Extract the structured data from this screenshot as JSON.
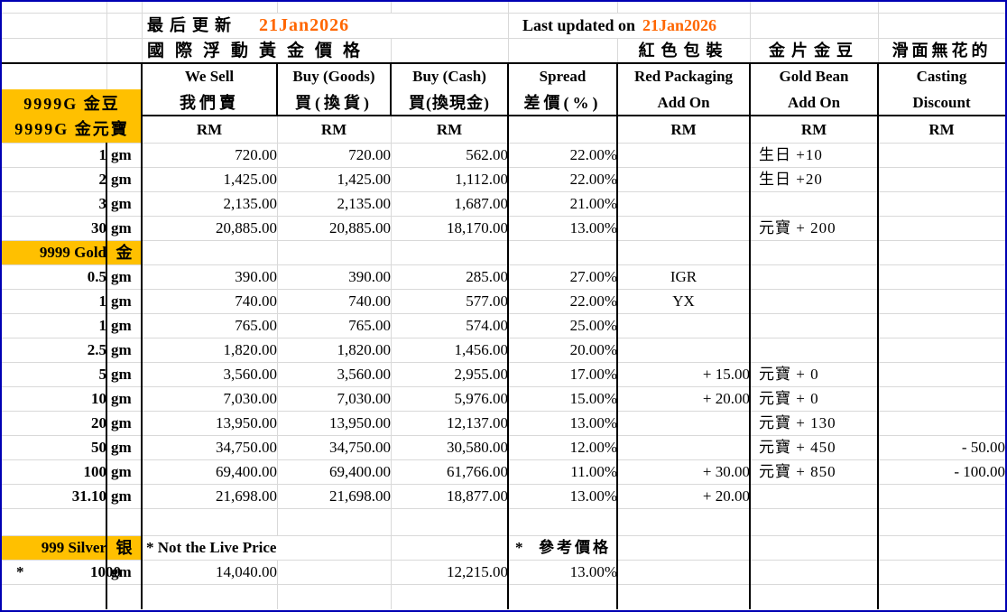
{
  "sheet": {
    "updated": {
      "label_cn": "最后更新",
      "label_en": "Last updated on",
      "date": "21Jan2026"
    },
    "subtitle_cn": "國際浮動黃金價格",
    "col_titles_cn": {
      "red_packaging": "紅色包裝",
      "gold_bean": "金片金豆",
      "casting": "滑面無花的"
    },
    "headers": {
      "en": {
        "we_sell": "We Sell",
        "buy_goods": "Buy (Goods)",
        "buy_cash": "Buy (Cash)",
        "spread": "Spread",
        "red_packaging": "Red Packaging",
        "gold_bean": "Gold Bean",
        "casting": "Casting"
      },
      "cn": {
        "we_sell": "我們賣",
        "buy_goods": "買(換貨)",
        "buy_cash": "買(換現金)",
        "spread": "差價(%)",
        "red_packaging": "Add On",
        "gold_bean": "Add On",
        "casting": "Discount"
      },
      "currency": "RM"
    },
    "section_bean": {
      "line1": "9999G 金豆",
      "line2": "9999G 金元寶"
    },
    "rows": [
      {
        "type": "data",
        "qty": "1",
        "unit": "gm",
        "sell": "720.00",
        "goods": "720.00",
        "cash": "562.00",
        "spread": "22.00%",
        "bean": "生日 +10"
      },
      {
        "type": "data",
        "qty": "2",
        "unit": "gm",
        "sell": "1,425.00",
        "goods": "1,425.00",
        "cash": "1,112.00",
        "spread": "22.00%",
        "bean": "生日 +20"
      },
      {
        "type": "data",
        "qty": "3",
        "unit": "gm",
        "sell": "2,135.00",
        "goods": "2,135.00",
        "cash": "1,687.00",
        "spread": "21.00%"
      },
      {
        "type": "data",
        "qty": "30",
        "unit": "gm",
        "sell": "20,885.00",
        "goods": "20,885.00",
        "cash": "18,170.00",
        "spread": "13.00%",
        "bean": "元寶 + 200"
      },
      {
        "type": "section",
        "label": "9999 Gold",
        "unit": "金"
      },
      {
        "type": "data",
        "qty": "0.5",
        "unit": "gm",
        "sell": "390.00",
        "goods": "390.00",
        "cash": "285.00",
        "spread": "27.00%",
        "red": "IGR"
      },
      {
        "type": "data",
        "qty": "1",
        "unit": "gm",
        "sell": "740.00",
        "goods": "740.00",
        "cash": "577.00",
        "spread": "22.00%",
        "red": "YX"
      },
      {
        "type": "data",
        "qty": "1",
        "unit": "gm",
        "sell": "765.00",
        "goods": "765.00",
        "cash": "574.00",
        "spread": "25.00%"
      },
      {
        "type": "data",
        "qty": "2.5",
        "unit": "gm",
        "sell": "1,820.00",
        "goods": "1,820.00",
        "cash": "1,456.00",
        "spread": "20.00%"
      },
      {
        "type": "data",
        "qty": "5",
        "unit": "gm",
        "sell": "3,560.00",
        "goods": "3,560.00",
        "cash": "2,955.00",
        "spread": "17.00%",
        "red": "+ 15.00",
        "bean": "元寶 + 0"
      },
      {
        "type": "data",
        "qty": "10",
        "unit": "gm",
        "sell": "7,030.00",
        "goods": "7,030.00",
        "cash": "5,976.00",
        "spread": "15.00%",
        "red": "+ 20.00",
        "bean": "元寶 + 0"
      },
      {
        "type": "data",
        "qty": "20",
        "unit": "gm",
        "sell": "13,950.00",
        "goods": "13,950.00",
        "cash": "12,137.00",
        "spread": "13.00%",
        "bean": "元寶 + 130"
      },
      {
        "type": "data",
        "qty": "50",
        "unit": "gm",
        "sell": "34,750.00",
        "goods": "34,750.00",
        "cash": "30,580.00",
        "spread": "12.00%",
        "bean": "元寶 + 450",
        "cast": "- 50.00"
      },
      {
        "type": "data",
        "qty": "100",
        "unit": "gm",
        "sell": "69,400.00",
        "goods": "69,400.00",
        "cash": "61,766.00",
        "spread": "11.00%",
        "red": "+ 30.00",
        "bean": "元寶 + 850",
        "cast": "- 100.00"
      },
      {
        "type": "data",
        "qty": "31.10",
        "unit": "gm",
        "sell": "21,698.00",
        "goods": "21,698.00",
        "cash": "18,877.00",
        "spread": "13.00%",
        "red": "+ 20.00"
      },
      {
        "type": "empty"
      },
      {
        "type": "note",
        "label": "999 Silver",
        "unit": "银",
        "note_en": "* Not the Live Price",
        "note_spread": "*  參考價格"
      },
      {
        "type": "data",
        "star": "*",
        "qty": "1000",
        "unit": "gm",
        "sell": "14,040.00",
        "cash": "12,215.00",
        "spread": "13.00%"
      },
      {
        "type": "empty"
      }
    ],
    "colors": {
      "highlight": "#FFC000",
      "date_orange": "#FF6600",
      "grid_gray": "#D9D9D9",
      "border_black": "#000000",
      "frame_blue": "#0000B3"
    }
  }
}
